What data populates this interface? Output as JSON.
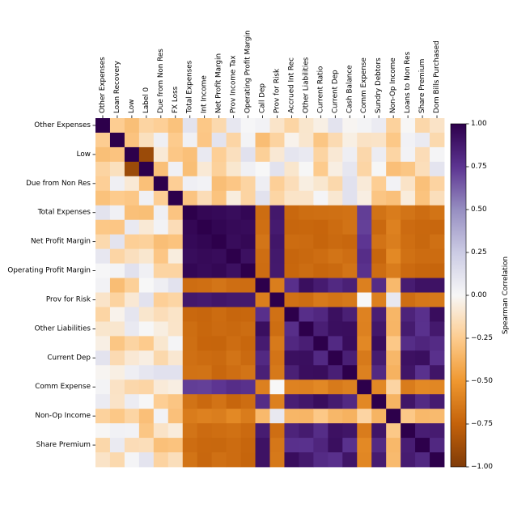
{
  "chart_data": {
    "type": "heatmap",
    "title": "",
    "xlabel": "",
    "ylabel": "",
    "variables": [
      "Other Expenses",
      "Loan Recovery",
      "Low",
      "Label 0",
      "Due from Non Res",
      "FX Loss",
      "Total Expenses",
      "Int Income",
      "Net Profit Margin",
      "Prov Income Tax",
      "Operating Profit Margin",
      "Call Dep",
      "Prov for Risk",
      "Accrued Int Rec",
      "Other Liabilities",
      "Current Ratio",
      "Current Dep",
      "Cash Balance",
      "Comm Expense",
      "Sundry Debtors",
      "Non-Op Income",
      "Loans to Non Res",
      "Share Premium",
      "Dom Bills Purchased"
    ],
    "groups": {
      "independent_rows": [
        "Other Expenses",
        "Loan Recovery",
        "Low",
        "Label 0",
        "Due from Non Res",
        "FX Loss"
      ],
      "cluster_a": [
        "Total Expenses",
        "Int Income",
        "Net Profit Margin",
        "Prov Income Tax",
        "Operating Profit Margin"
      ],
      "cluster_b": [
        "Call Dep",
        "Accrued Int Rec",
        "Other Liabilities",
        "Current Ratio",
        "Current Dep",
        "Cash Balance",
        "Sundry Debtors",
        "Loans to Non Res",
        "Share Premium",
        "Dom Bills Purchased"
      ],
      "mixed": [
        "Prov for Risk",
        "Comm Expense",
        "Non-Op Income"
      ]
    },
    "approx_correlations": {
      "within_cluster_a": 0.95,
      "within_cluster_b": 0.85,
      "cluster_a_vs_cluster_b": -0.7,
      "low_vs_label_0": -0.9,
      "prov_for_risk_vs_cluster_a": 0.9,
      "prov_for_risk_vs_cluster_b": -0.65,
      "comm_expense_vs_cluster_a": 0.75,
      "comm_expense_vs_cluster_b": -0.6,
      "non_op_income_vs_cluster_a": -0.6,
      "non_op_income_vs_cluster_b": -0.3,
      "independent_vs_clusters": -0.1
    },
    "colorbar": {
      "label": "Spearman Correlation",
      "min": -1.0,
      "max": 1.0,
      "ticks": [
        "1.00",
        "0.75",
        "0.50",
        "0.25",
        "0.00",
        "−0.25",
        "−0.50",
        "−0.75",
        "−1.00"
      ],
      "colormap": "PuOr",
      "color_at_max": "#2d004b",
      "color_at_zero": "#f7f7f7",
      "color_at_min": "#7f3b08"
    },
    "grid": false,
    "legend": "colorbar-right"
  }
}
